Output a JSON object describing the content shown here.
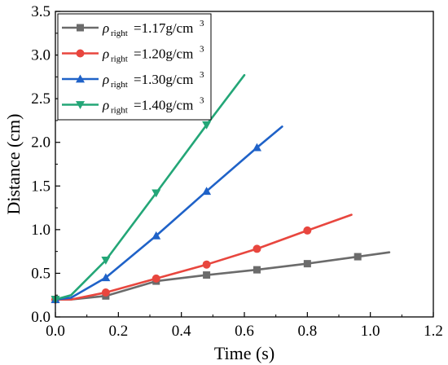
{
  "chart_data": {
    "type": "line",
    "xlabel": "Time (s)",
    "ylabel": "Distance (cm)",
    "xlim": [
      0.0,
      1.2
    ],
    "ylim": [
      0.0,
      3.5
    ],
    "xticks": [
      "0.0",
      "0.2",
      "0.4",
      "0.6",
      "0.8",
      "1.0",
      "1.2"
    ],
    "yticks": [
      "0.0",
      "0.5",
      "1.0",
      "1.5",
      "2.0",
      "2.5",
      "3.0",
      "3.5"
    ],
    "grid": false,
    "legend_position": "top-left",
    "series": [
      {
        "name": "ρright=1.17g/cm3",
        "legend": {
          "symbol": "ρ",
          "subscript": "right",
          "value": "=1.17g/cm",
          "superscript": "3"
        },
        "color": "#6b6b6b",
        "marker": "square",
        "x": [
          0.0,
          0.05,
          0.16,
          0.32,
          0.48,
          0.64,
          0.8,
          0.96,
          1.06
        ],
        "y": [
          0.2,
          0.2,
          0.24,
          0.41,
          0.48,
          0.54,
          0.61,
          0.69,
          0.74
        ],
        "marker_indices": [
          0,
          2,
          3,
          4,
          5,
          6,
          7
        ]
      },
      {
        "name": "ρright=1.20g/cm3",
        "legend": {
          "symbol": "ρ",
          "subscript": "right",
          "value": "=1.20g/cm",
          "superscript": "3"
        },
        "color": "#e8463e",
        "marker": "circle",
        "x": [
          0.0,
          0.05,
          0.16,
          0.32,
          0.48,
          0.64,
          0.8,
          0.94
        ],
        "y": [
          0.2,
          0.2,
          0.28,
          0.44,
          0.6,
          0.78,
          0.99,
          1.17
        ],
        "marker_indices": [
          0,
          2,
          3,
          4,
          5,
          6
        ]
      },
      {
        "name": "ρright=1.30g/cm3",
        "legend": {
          "symbol": "ρ",
          "subscript": "right",
          "value": "=1.30g/cm",
          "superscript": "3"
        },
        "color": "#1f62c8",
        "marker": "triangle-up",
        "x": [
          0.0,
          0.05,
          0.16,
          0.32,
          0.48,
          0.64,
          0.72
        ],
        "y": [
          0.2,
          0.22,
          0.45,
          0.93,
          1.44,
          1.94,
          2.18
        ],
        "marker_indices": [
          0,
          2,
          3,
          4,
          5
        ]
      },
      {
        "name": "ρright=1.40g/cm3",
        "legend": {
          "symbol": "ρ",
          "subscript": "right",
          "value": "=1.40g/cm",
          "superscript": "3"
        },
        "color": "#23a677",
        "marker": "triangle-down",
        "x": [
          0.0,
          0.05,
          0.16,
          0.32,
          0.48,
          0.6
        ],
        "y": [
          0.2,
          0.25,
          0.65,
          1.42,
          2.2,
          2.77
        ],
        "marker_indices": [
          0,
          2,
          3,
          4
        ]
      }
    ]
  }
}
